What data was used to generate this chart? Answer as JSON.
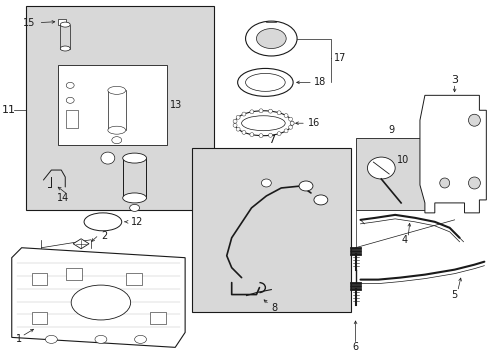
{
  "bg_color": "#ffffff",
  "line_color": "#1a1a1a",
  "gray_fill": "#d8d8d8",
  "lw": 0.7
}
